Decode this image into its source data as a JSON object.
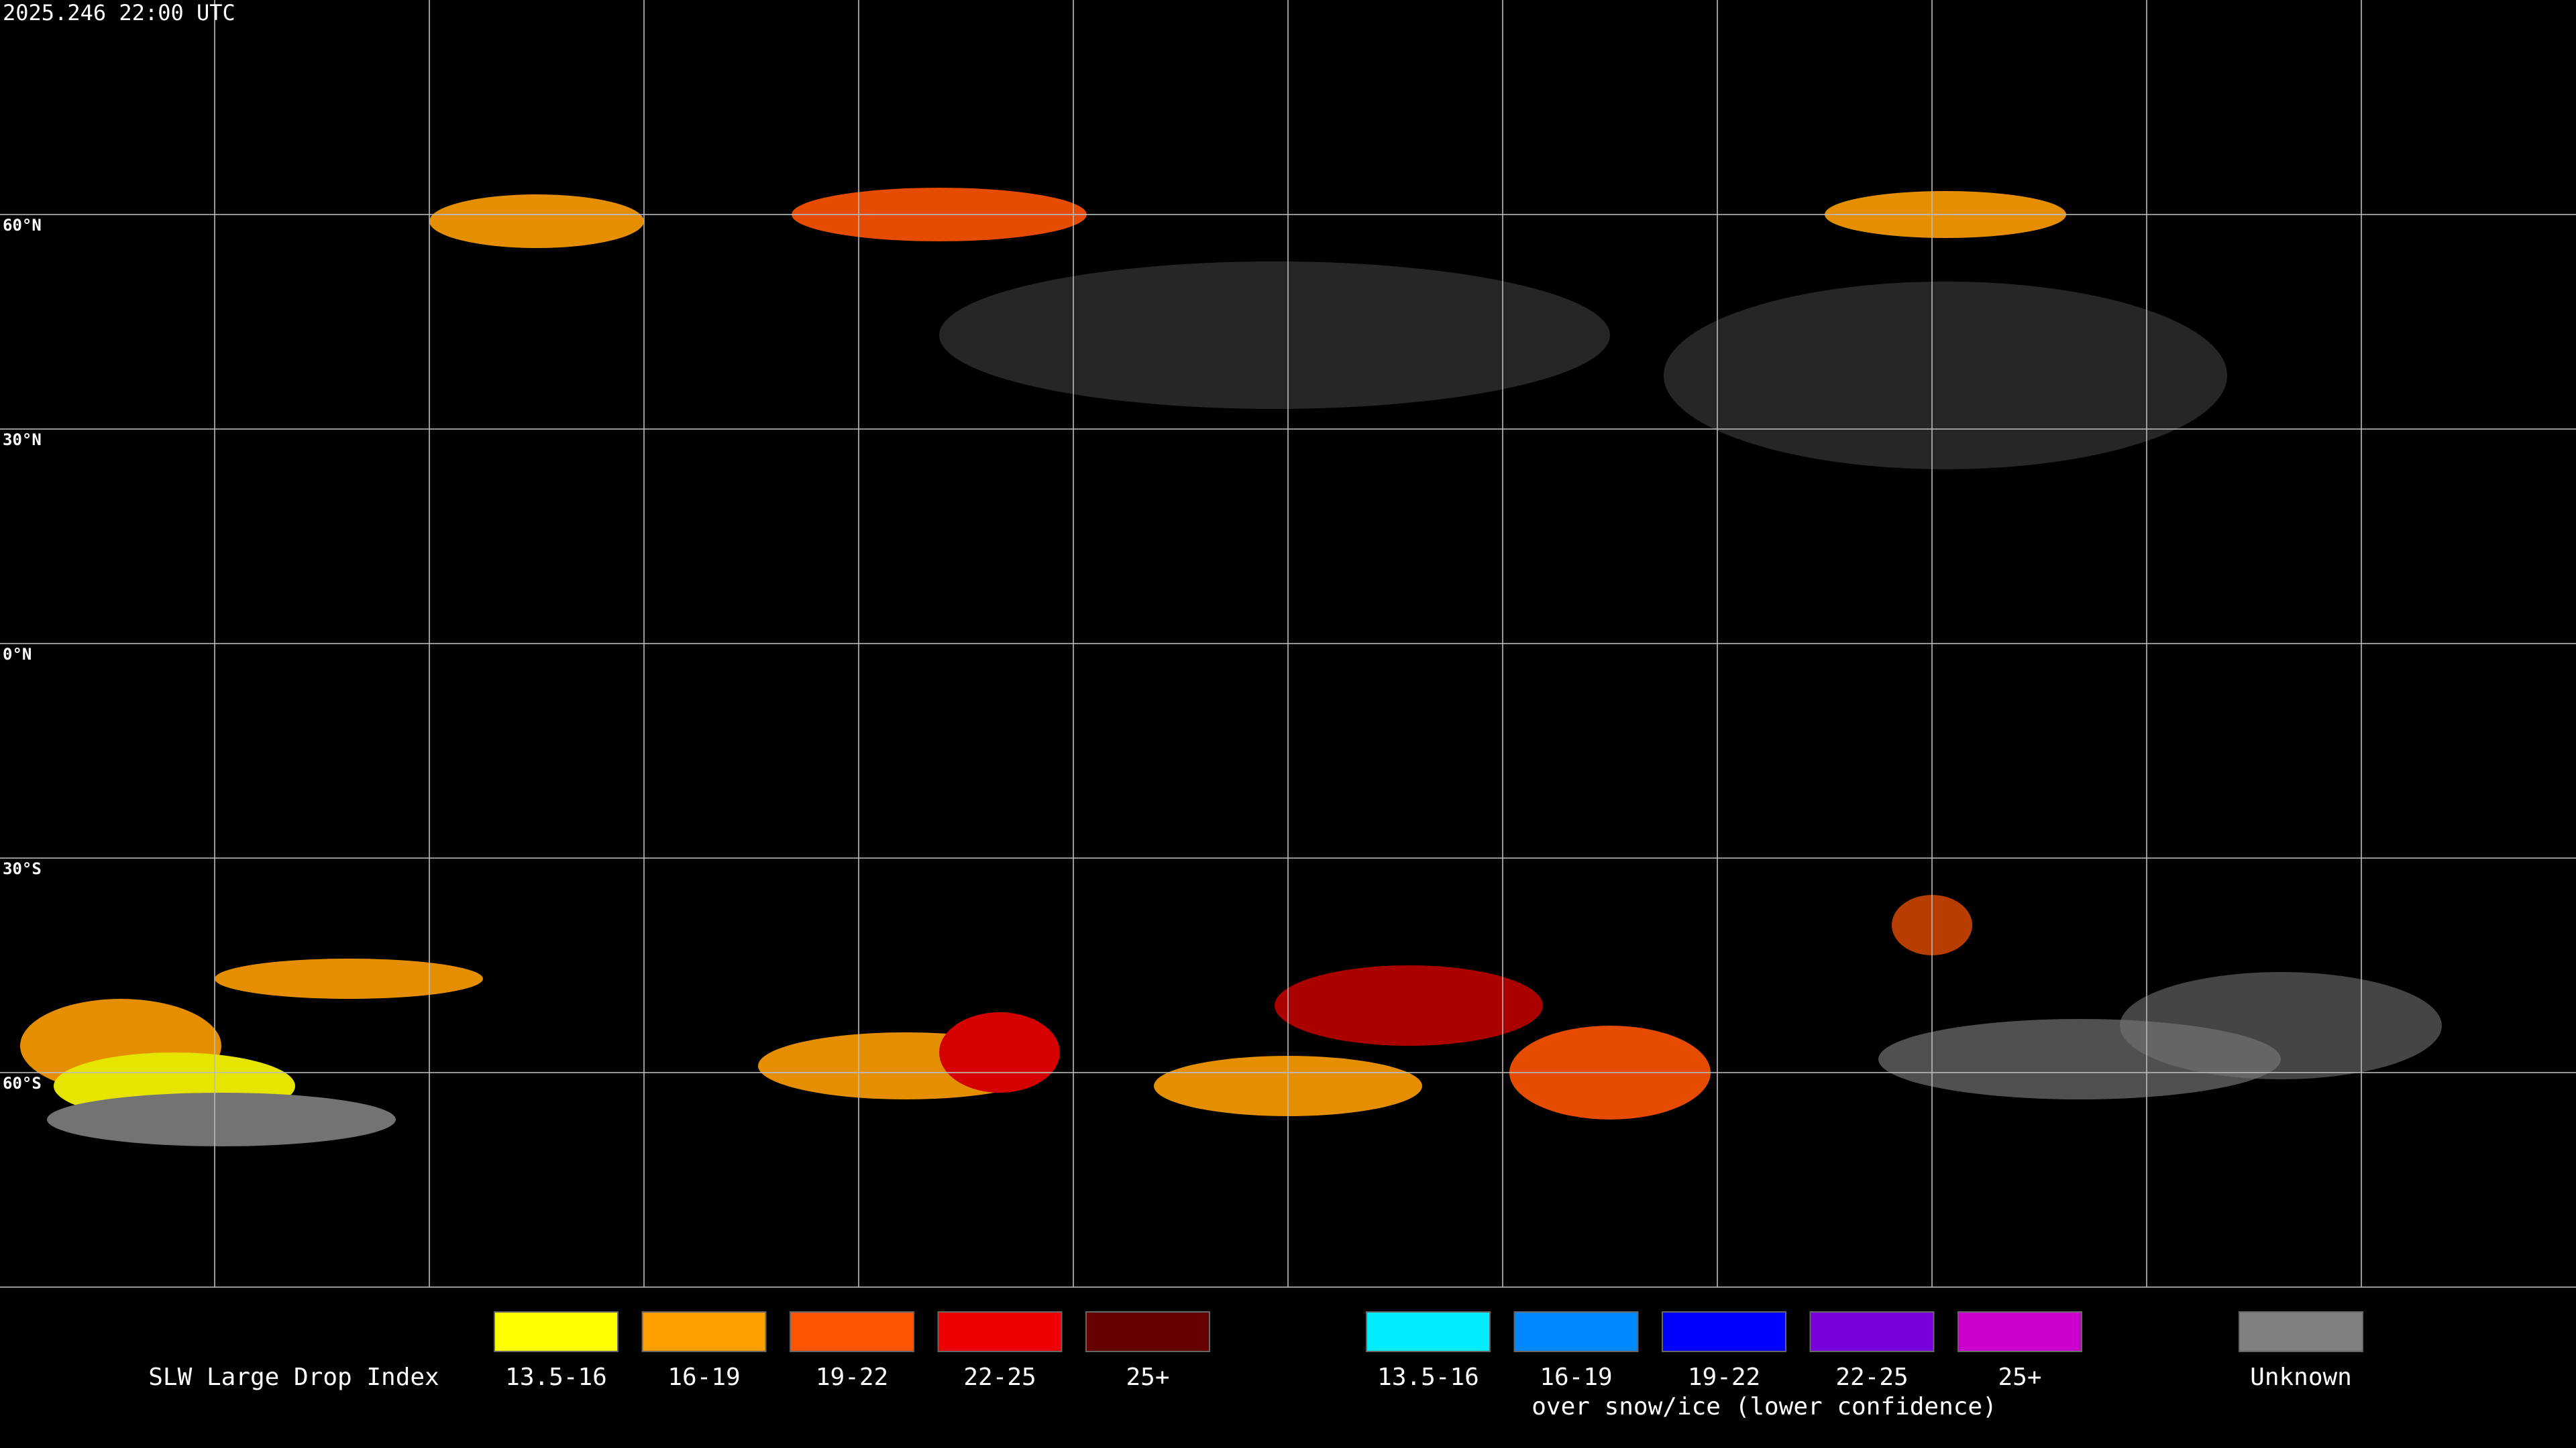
{
  "header": {
    "timestamp": "2025.246 22:00 UTC"
  },
  "map": {
    "lat_labels": [
      "60°N",
      "30°N",
      "0°N",
      "30°S",
      "60°S"
    ]
  },
  "legend": {
    "title": "SLW Large Drop Index",
    "liquid": [
      {
        "label": "13.5-16",
        "color": "#ffff00"
      },
      {
        "label": "16-19",
        "color": "#ffa000"
      },
      {
        "label": "19-22",
        "color": "#ff5500"
      },
      {
        "label": "22-25",
        "color": "#ee0000"
      },
      {
        "label": "25+",
        "color": "#660000"
      }
    ],
    "snow_ice": [
      {
        "label": "13.5-16",
        "color": "#00eeff"
      },
      {
        "label": "16-19",
        "color": "#0088ff"
      },
      {
        "label": "19-22",
        "color": "#0000ff"
      },
      {
        "label": "22-25",
        "color": "#7700dd"
      },
      {
        "label": "25+",
        "color": "#cc00cc"
      }
    ],
    "snow_ice_note": "over snow/ice (lower confidence)",
    "unknown": {
      "label": "Unknown",
      "color": "#808080"
    }
  }
}
